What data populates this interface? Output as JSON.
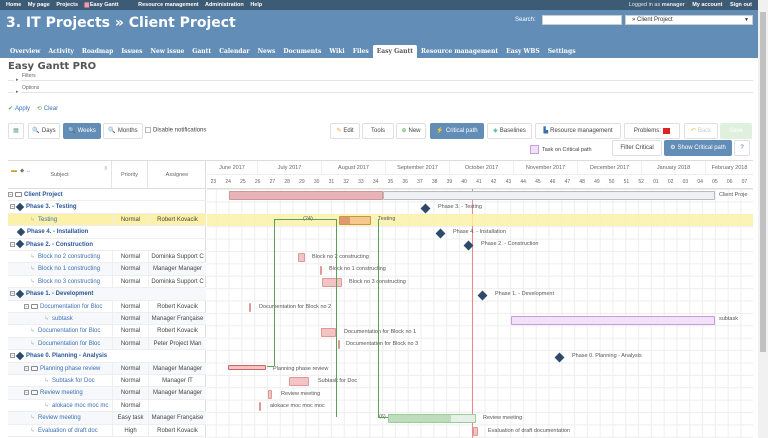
{
  "topbar": {
    "left": [
      "Home",
      "My page",
      "Projects",
      "Easy Gantt",
      "Resource management",
      "Administration",
      "Help"
    ],
    "logged_prefix": "Logged in as",
    "user": "manager",
    "my_account": "My account",
    "sign_out": "Sign out"
  },
  "header": {
    "title": "3. IT Projects » Client Project",
    "search_label": "Search:",
    "search_value": "",
    "project_select": "» Client Project"
  },
  "tabs": [
    "Overview",
    "Activity",
    "Roadmap",
    "Issues",
    "New issue",
    "Gantt",
    "Calendar",
    "News",
    "Documents",
    "Wiki",
    "Files",
    "Easy Gantt",
    "Resource management",
    "Easy WBS",
    "Settings"
  ],
  "selected_tab": "Easy Gantt",
  "page": {
    "title": "Easy Gantt PRO",
    "filters": "Filters",
    "options": "Options",
    "apply": "Apply",
    "clear": "Clear"
  },
  "toolbar": {
    "days": "Days",
    "weeks": "Weeks",
    "months": "Months",
    "disable_notifications": "Disable notifications",
    "edit": "Edit",
    "tools": "Tools",
    "new": "New",
    "critical_path": "Critical path",
    "baselines": "Baselines",
    "resource_management": "Resource management",
    "problems": "Problems:",
    "problems_count": "16",
    "back": "Back",
    "save": "Save",
    "task_on_critical": "Task on Critical path",
    "filter_critical": "Filter Critical",
    "show_critical": "Show Critical path",
    "help": "?"
  },
  "grid": {
    "headers": {
      "subject": "Subject",
      "priority": "Priority",
      "assignee": "Assignee"
    },
    "months": [
      "June 2017",
      "July 2017",
      "August 2017",
      "September 2017",
      "October 2017",
      "November 2017",
      "December 2017",
      "January 2018",
      "February 2018"
    ],
    "weeks": [
      "23",
      "24",
      "25",
      "26",
      "27",
      "28",
      "29",
      "30",
      "31",
      "32",
      "33",
      "34",
      "35",
      "36",
      "37",
      "38",
      "39",
      "40",
      "41",
      "42",
      "43",
      "44",
      "45",
      "46",
      "47",
      "48",
      "49",
      "50",
      "51",
      "52",
      "01",
      "02",
      "03",
      "04",
      "05",
      "06",
      "07"
    ],
    "rows": [
      {
        "subject": "Client Project",
        "priority": "",
        "assignee": ""
      },
      {
        "subject": "Phase 3. - Testing",
        "priority": "",
        "assignee": ""
      },
      {
        "subject": "Testing",
        "priority": "Normal",
        "assignee": "Robert Kovacik"
      },
      {
        "subject": "Phase 4. - Installation",
        "priority": "",
        "assignee": ""
      },
      {
        "subject": "Phase 2. - Construction",
        "priority": "",
        "assignee": ""
      },
      {
        "subject": "Block no 2 constructing",
        "priority": "Normal",
        "assignee": "Dominka Support C"
      },
      {
        "subject": "Block no 1 constructing",
        "priority": "Normal",
        "assignee": "Manager Manager"
      },
      {
        "subject": "Block no 3 constructing",
        "priority": "Normal",
        "assignee": "Dominka Support C"
      },
      {
        "subject": "Phase 1. - Development",
        "priority": "",
        "assignee": ""
      },
      {
        "subject": "Documentation for Bloc",
        "priority": "Normal",
        "assignee": "Robert Kovacik"
      },
      {
        "subject": "subtask",
        "priority": "Normal",
        "assignee": "Manager Française"
      },
      {
        "subject": "Documentation for Bloc",
        "priority": "Normal",
        "assignee": "Robert Kovacik"
      },
      {
        "subject": "Documentation for Bloc",
        "priority": "Normal",
        "assignee": "Peter Project Man"
      },
      {
        "subject": "Phase 0. Planning - Analysis",
        "priority": "",
        "assignee": ""
      },
      {
        "subject": "Planning phase review",
        "priority": "Normal",
        "assignee": "Manager Manager"
      },
      {
        "subject": "Subtask for Doc",
        "priority": "Normal",
        "assignee": "Manager IT"
      },
      {
        "subject": "Review meeting",
        "priority": "Normal",
        "assignee": "Manager Manager"
      },
      {
        "subject": "alokace moc moc mc",
        "priority": "Normal",
        "assignee": ""
      },
      {
        "subject": "Review meeting",
        "priority": "Easy task",
        "assignee": "Manager Française"
      },
      {
        "subject": "Evaluation of draft doc",
        "priority": "High",
        "assignee": "Robert Kovacik"
      }
    ],
    "bar_labels": {
      "client": "Client Proje",
      "phase3": "Phase 3. - Testing",
      "testing": "Testing",
      "testing_count": "(24)",
      "phase4": "Phase 4. - Installation",
      "phase2": "Phase 2. - Construction",
      "b2": "Block no 2 constructing",
      "b1": "Block no 1 constructing",
      "b3": "Block no 3 constructing",
      "phase1": "Phase 1. - Development",
      "doc2": "Documentation for Block no 2",
      "subtask": "subtask",
      "doc1": "Documentation for Block no 1",
      "doc3": "Documentation for Block no 3",
      "phase0": "Phase 0. Planning - Analysis",
      "ppr": "Planning phase review",
      "sfd": "Subtask for Doc",
      "rm1": "Review meeting",
      "alok": "alokace moc moc moc",
      "rm2": "Review meeting",
      "rm2_count": "(6)",
      "eval": "Evaluation of draft documentation"
    }
  },
  "colors": {
    "header": "#628db6",
    "topbar": "#3e5b76",
    "active_btn": "#628db6",
    "highlight_row": "#fbf1a9",
    "critical": "#f0e0f8"
  }
}
